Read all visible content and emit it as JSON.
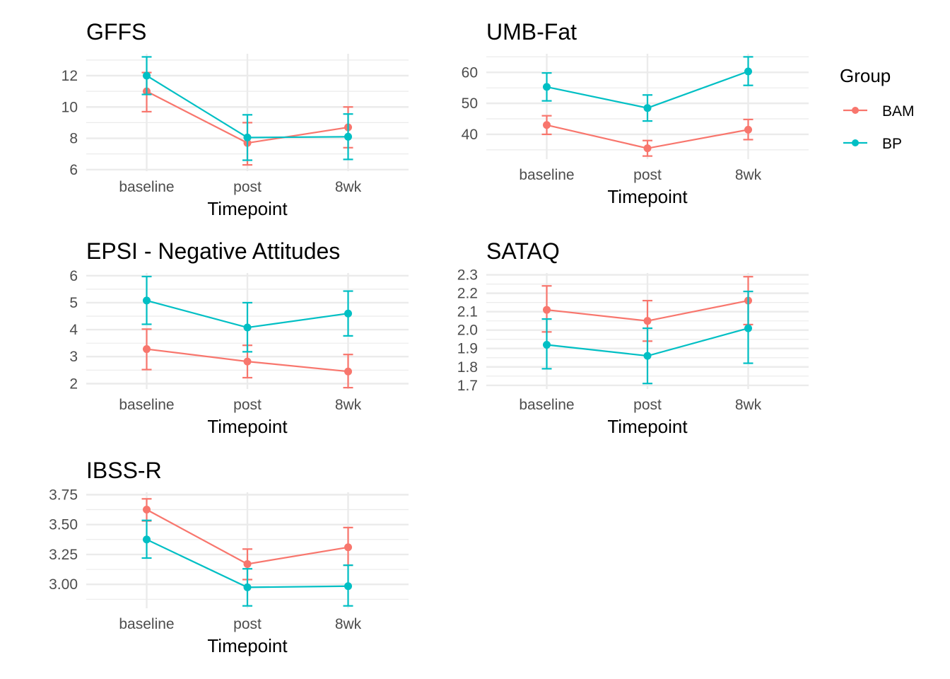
{
  "legend": {
    "title": "Group",
    "items": [
      {
        "name": "BAM",
        "color": "#F8766D"
      },
      {
        "name": "BP",
        "color": "#00BFC4"
      }
    ]
  },
  "chart_data": [
    {
      "type": "line",
      "title": "GFFS",
      "xlabel": "Timepoint",
      "ylabel": "",
      "categories": [
        "baseline",
        "post",
        "8wk"
      ],
      "ylim": [
        5.9,
        13.4
      ],
      "yticks": [
        6,
        8,
        10,
        12
      ],
      "ytick_labels": [
        "6",
        "8",
        "10",
        "12"
      ],
      "series": [
        {
          "name": "BAM",
          "values": [
            11.0,
            7.7,
            8.7
          ],
          "err_low": [
            9.7,
            6.3,
            7.4
          ],
          "err_high": [
            12.2,
            9.0,
            10.0
          ]
        },
        {
          "name": "BP",
          "values": [
            12.0,
            8.05,
            8.1
          ],
          "err_low": [
            10.8,
            6.6,
            6.65
          ],
          "err_high": [
            13.2,
            9.5,
            9.55
          ]
        }
      ]
    },
    {
      "type": "line",
      "title": "UMB-Fat",
      "xlabel": "Timepoint",
      "ylabel": "",
      "categories": [
        "baseline",
        "post",
        "8wk"
      ],
      "ylim": [
        32.0,
        66.0
      ],
      "yticks": [
        40,
        50,
        60
      ],
      "ytick_labels": [
        "40",
        "50",
        "60"
      ],
      "series": [
        {
          "name": "BAM",
          "values": [
            43.0,
            35.5,
            41.5
          ],
          "err_low": [
            40.0,
            33.0,
            38.3
          ],
          "err_high": [
            46.0,
            38.0,
            44.8
          ]
        },
        {
          "name": "BP",
          "values": [
            55.3,
            48.5,
            60.3
          ],
          "err_low": [
            50.8,
            44.3,
            55.8
          ],
          "err_high": [
            59.8,
            52.7,
            65.0
          ]
        }
      ]
    },
    {
      "type": "line",
      "title": "EPSI - Negative Attitudes",
      "xlabel": "Timepoint",
      "ylabel": "",
      "categories": [
        "baseline",
        "post",
        "8wk"
      ],
      "ylim": [
        1.8,
        6.1
      ],
      "yticks": [
        2,
        3,
        4,
        5,
        6
      ],
      "ytick_labels": [
        "2",
        "3",
        "4",
        "5",
        "6"
      ],
      "series": [
        {
          "name": "BAM",
          "values": [
            3.28,
            2.82,
            2.45
          ],
          "err_low": [
            2.52,
            2.22,
            1.85
          ],
          "err_high": [
            4.02,
            3.42,
            3.08
          ]
        },
        {
          "name": "BP",
          "values": [
            5.08,
            4.08,
            4.6
          ],
          "err_low": [
            4.2,
            3.18,
            3.77
          ],
          "err_high": [
            5.97,
            5.0,
            5.43
          ]
        }
      ]
    },
    {
      "type": "line",
      "title": "SATAQ",
      "xlabel": "Timepoint",
      "ylabel": "",
      "categories": [
        "baseline",
        "post",
        "8wk"
      ],
      "ylim": [
        1.68,
        2.31
      ],
      "yticks": [
        1.7,
        1.8,
        1.9,
        2.0,
        2.1,
        2.2,
        2.3
      ],
      "ytick_labels": [
        "1.7",
        "1.8",
        "1.9",
        "2.0",
        "2.1",
        "2.2",
        "2.3"
      ],
      "series": [
        {
          "name": "BAM",
          "values": [
            2.11,
            2.05,
            2.16
          ],
          "err_low": [
            1.99,
            1.94,
            2.03
          ],
          "err_high": [
            2.24,
            2.16,
            2.29
          ]
        },
        {
          "name": "BP",
          "values": [
            1.92,
            1.86,
            2.01
          ],
          "err_low": [
            1.79,
            1.71,
            1.82
          ],
          "err_high": [
            2.06,
            2.01,
            2.21
          ]
        }
      ]
    },
    {
      "type": "line",
      "title": "IBSS-R",
      "xlabel": "Timepoint",
      "ylabel": "",
      "categories": [
        "baseline",
        "post",
        "8wk"
      ],
      "ylim": [
        2.8,
        3.77
      ],
      "yticks": [
        3.0,
        3.25,
        3.5,
        3.75
      ],
      "ytick_labels": [
        "3.00",
        "3.25",
        "3.50",
        "3.75"
      ],
      "series": [
        {
          "name": "BAM",
          "values": [
            3.625,
            3.17,
            3.31
          ],
          "err_low": [
            3.53,
            3.04,
            3.16
          ],
          "err_high": [
            3.715,
            3.295,
            3.475
          ]
        },
        {
          "name": "BP",
          "values": [
            3.375,
            2.975,
            2.985
          ],
          "err_low": [
            3.22,
            2.82,
            2.82
          ],
          "err_high": [
            3.535,
            3.13,
            3.16
          ]
        }
      ]
    }
  ]
}
